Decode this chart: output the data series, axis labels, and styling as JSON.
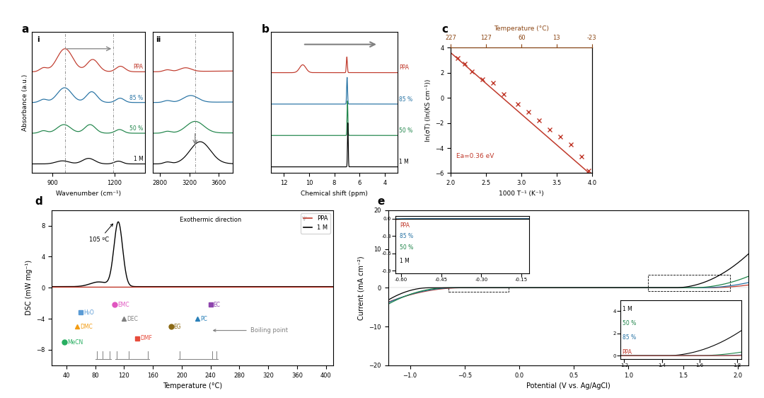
{
  "colors": {
    "PPA": "#c0392b",
    "85pct": "#2471a3",
    "50pct": "#1e8449",
    "1M": "#000000",
    "gray": "#808080",
    "top_axis": "#8B4513"
  },
  "panel_c": {
    "xlabel": "1000 T⁻¹ (K⁻¹)",
    "ylabel": "ln(σT) (ln(KS cm⁻¹))",
    "top_xlabel": "Temperature (°C)",
    "xrange": [
      2.0,
      4.0
    ],
    "yrange": [
      -6,
      4
    ],
    "xticks": [
      2.0,
      2.5,
      3.0,
      3.5,
      4.0
    ],
    "yticks": [
      -6,
      -4,
      -2,
      0,
      2,
      4
    ],
    "top_xticks": [
      227,
      127,
      60,
      13,
      -23
    ],
    "ea_label": "Ea=0.36 eV",
    "data_x": [
      2.1,
      2.2,
      2.3,
      2.45,
      2.6,
      2.75,
      2.95,
      3.1,
      3.25,
      3.4,
      3.55,
      3.7,
      3.85,
      3.95
    ],
    "data_y": [
      3.2,
      2.7,
      2.1,
      1.5,
      1.2,
      0.3,
      -0.5,
      -1.1,
      -1.8,
      -2.5,
      -3.1,
      -3.7,
      -4.7,
      -5.8
    ],
    "fit_x": [
      2.0,
      4.0
    ],
    "fit_y": [
      3.6,
      -6.2
    ]
  },
  "panel_d": {
    "xlabel": "Temperature (°C)",
    "ylabel": "DSC (mW mg⁻¹)",
    "xrange": [
      20,
      410
    ],
    "yrange": [
      -10,
      10
    ],
    "xticks": [
      40,
      80,
      120,
      160,
      200,
      240,
      280,
      320,
      360,
      400
    ],
    "yticks": [
      -8,
      -4,
      0,
      4,
      8
    ]
  },
  "panel_e": {
    "xlabel": "Potential (V vs. Ag/AgCl)",
    "ylabel": "Current (mA cm⁻²)",
    "xrange": [
      -1.2,
      2.1
    ],
    "yrange": [
      -20,
      20
    ],
    "xticks": [
      -1.0,
      -0.5,
      0.0,
      0.5,
      1.0,
      1.5,
      2.0
    ],
    "yticks": [
      -20,
      -10,
      0,
      10,
      20
    ]
  }
}
